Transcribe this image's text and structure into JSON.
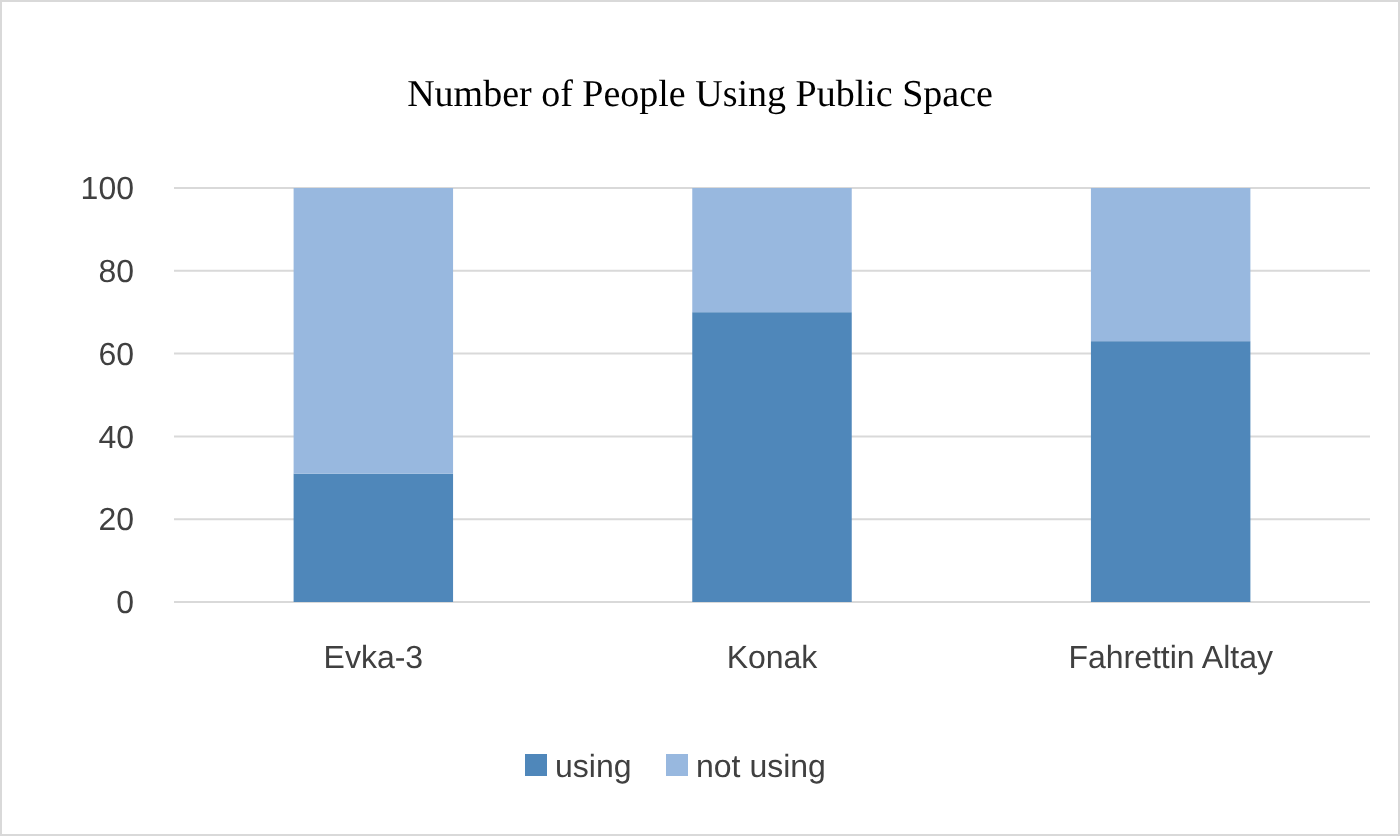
{
  "chart_data": {
    "type": "bar",
    "title": "Number of People Using Public Space",
    "categories": [
      "Evka-3",
      "Konak",
      "Fahrettin Altay"
    ],
    "stacked": true,
    "series": [
      {
        "name": "using",
        "color": "#4f87ba",
        "values": [
          31,
          70,
          63
        ]
      },
      {
        "name": "not using",
        "color": "#98b8df",
        "values": [
          69,
          30,
          37
        ]
      }
    ],
    "ylim": [
      0,
      100
    ],
    "yticks": [
      0,
      20,
      40,
      60,
      80,
      100
    ],
    "grid": "y",
    "legend": "bottom"
  }
}
